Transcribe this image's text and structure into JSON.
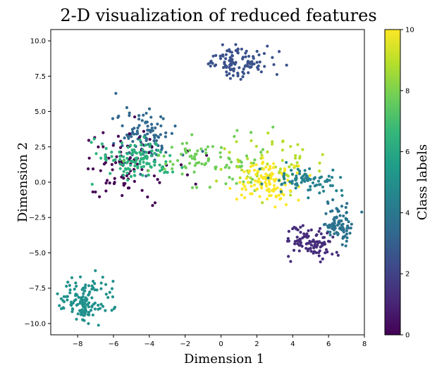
{
  "chart_data": {
    "type": "scatter",
    "title": "2-D visualization of reduced features",
    "xlabel": "Dimension 1",
    "ylabel": "Dimension 2",
    "xlim": [
      -9.5,
      8
    ],
    "ylim": [
      -10.8,
      10.8
    ],
    "xticks": [
      -8,
      -6,
      -4,
      -2,
      0,
      2,
      4,
      6,
      8
    ],
    "yticks": [
      10.0,
      7.5,
      5.0,
      2.5,
      0.0,
      -2.5,
      -5.0,
      -7.5,
      -10.0
    ],
    "xtick_labels": [
      "−8",
      "−6",
      "−4",
      "−2",
      "0",
      "2",
      "4",
      "6",
      "8"
    ],
    "ytick_labels": [
      "10.0",
      "7.5",
      "5.0",
      "2.5",
      "0.0",
      "−2.5",
      "−5.0",
      "−7.5",
      "−10.0"
    ],
    "colorbar": {
      "label": "Class labels",
      "range": [
        0,
        10
      ],
      "ticks": [
        0,
        2,
        4,
        6,
        8,
        10
      ],
      "tick_labels": [
        "0",
        "2",
        "4",
        "6",
        "8",
        "10"
      ],
      "colormap": "viridis",
      "stops": [
        "#440154",
        "#482878",
        "#3e4989",
        "#31688e",
        "#26828e",
        "#1f9e89",
        "#35b779",
        "#6ece58",
        "#b5de2b",
        "#fde725"
      ]
    },
    "clusters": [
      {
        "label": 2,
        "center": [
          1.0,
          8.5
        ],
        "spread": [
          1.0,
          0.6
        ],
        "n": 110,
        "color": "#3b528b"
      },
      {
        "label": 3,
        "center": [
          -4.3,
          3.2
        ],
        "spread": [
          0.8,
          1.0
        ],
        "n": 110,
        "color": "#31688e"
      },
      {
        "label": 0,
        "center": [
          -5.2,
          1.2
        ],
        "spread": [
          1.2,
          1.4
        ],
        "n": 90,
        "color": "#440154"
      },
      {
        "label": 6,
        "center": [
          -4.8,
          1.5
        ],
        "spread": [
          1.0,
          0.7
        ],
        "n": 120,
        "color": "#2db27d"
      },
      {
        "label": 7,
        "center": [
          -0.8,
          1.5
        ],
        "spread": [
          1.6,
          0.9
        ],
        "n": 90,
        "color": "#6ece58"
      },
      {
        "label": 8,
        "center": [
          2.8,
          1.2
        ],
        "spread": [
          1.5,
          1.0
        ],
        "n": 60,
        "color": "#b5de2b"
      },
      {
        "label": 10,
        "center": [
          2.7,
          0.0
        ],
        "spread": [
          0.9,
          0.7
        ],
        "n": 120,
        "color": "#fde725"
      },
      {
        "label": 5,
        "center": [
          4.6,
          0.2
        ],
        "spread": [
          1.0,
          0.5
        ],
        "n": 80,
        "color": "#26828e"
      },
      {
        "label": 4,
        "center": [
          6.6,
          -3.0
        ],
        "spread": [
          0.4,
          0.6
        ],
        "n": 90,
        "color": "#2c728e"
      },
      {
        "label": 1,
        "center": [
          5.1,
          -4.3
        ],
        "spread": [
          0.7,
          0.6
        ],
        "n": 100,
        "color": "#472d7b"
      },
      {
        "label": 5,
        "center": [
          -7.6,
          -8.4
        ],
        "spread": [
          0.7,
          0.8
        ],
        "n": 140,
        "color": "#21918c"
      }
    ]
  }
}
